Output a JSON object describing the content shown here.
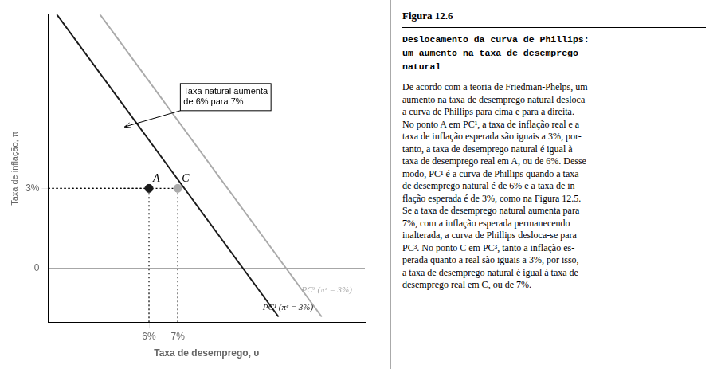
{
  "chart_data": {
    "type": "line",
    "title": "Figura 12.6",
    "subtitle": [
      "Deslocamento da curva de Phillips:",
      "um aumento na taxa de desemprego",
      "natural"
    ],
    "body": [
      "De acordo com a teoria de Friedman-Phelps, um",
      "aumento na taxa de desemprego natural desloca",
      "a curva de Phillips para cima e para a direita.",
      "No ponto A em PC¹, a taxa de inflação real e a",
      "taxa de inflação esperada são iguais a 3%, por-",
      "tanto, a taxa de desemprego natural é igual à",
      "taxa de desemprego real em A, ou de 6%. Desse",
      "modo, PC¹ é a curva de Phillips quando a taxa",
      "de desemprego natural é de 6% e a taxa de in-",
      "flação esperada é de 3%, como na Figura 12.5.",
      "Se a taxa de desemprego natural aumenta para",
      "7%, com a inflação esperada permanecendo",
      "inalterada, a curva de Phillips desloca-se para",
      "PC³. No ponto C em PC³, tanto a inflação es-",
      "perada quanto a real são iguais a 3%, por isso,",
      "a taxa de desemprego natural é igual à taxa de",
      "desemprego real em C, ou de 7%."
    ],
    "xlabel": "Taxa de desemprego, υ",
    "ylabel": "Taxa de inflação, π",
    "xlim": [
      2.5,
      13.5
    ],
    "ylim": [
      -2.0,
      9.5
    ],
    "xticks": [
      {
        "value": 6,
        "label": "6%"
      },
      {
        "value": 7,
        "label": "7%"
      }
    ],
    "yticks": [
      0,
      {
        "value": 3,
        "label": "3%"
      }
    ],
    "grid": false,
    "series": [
      {
        "color": "#1a1a1a",
        "line_style": "solid",
        "x": [
          2.8,
          10.5
        ],
        "values": [
          9.5,
          -1.8
        ]
      },
      {
        "color": "#aaaaaa",
        "line_style": "solid",
        "x": [
          4.3,
          12.0
        ],
        "values": [
          9.5,
          -1.8
        ]
      },
      {
        "name": "A",
        "type": "scatter",
        "marker": "circle",
        "color": "#1a1a1a",
        "x": [
          6
        ],
        "values": [
          3
        ]
      },
      {
        "name": "C",
        "type": "scatter",
        "marker": "circle",
        "color": "#aaaaaa",
        "x": [
          7
        ],
        "values": [
          3
        ]
      }
    ],
    "hlines": [
      0
    ],
    "annotations": [
      {
        "text": "PC³ (πᵉ = 3%)",
        "x": 11.3,
        "y": -0.9,
        "color": "#aaaaaa"
      },
      {
        "text": "PC¹ (πᵉ = 3%)",
        "x": 9.95,
        "y": -1.55,
        "color": "#1a1a1a"
      },
      {
        "text": "Taxa natural aumenta\nde 6% para 7%",
        "x": 7.2,
        "y": 6.8,
        "arrow": [
          5.15,
          5.3
        ]
      }
    ]
  }
}
